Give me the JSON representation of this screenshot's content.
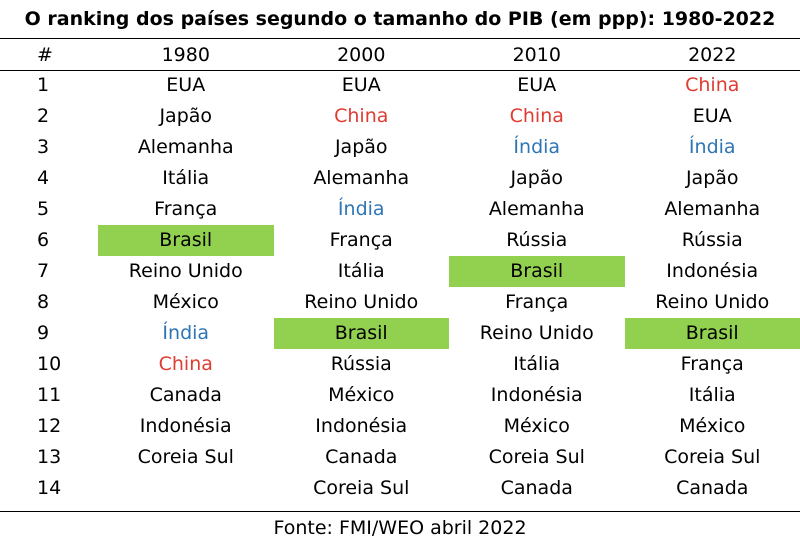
{
  "title": "O ranking dos países segundo o tamanho do PIB (em ppp): 1980-2022",
  "source": "Fonte: FMI/WEO abril 2022",
  "colors": {
    "highlight": "#92d050",
    "china": "#e03c31",
    "india": "#2e75b6"
  },
  "table": {
    "headers": [
      "#",
      "1980",
      "2000",
      "2010",
      "2022"
    ],
    "rows": [
      [
        "1",
        "EUA",
        "EUA",
        "EUA",
        "China"
      ],
      [
        "2",
        "Japão",
        "China",
        "China",
        "EUA"
      ],
      [
        "3",
        "Alemanha",
        "Japão",
        "Índia",
        "Índia"
      ],
      [
        "4",
        "Itália",
        "Alemanha",
        "Japão",
        "Japão"
      ],
      [
        "5",
        "França",
        "Índia",
        "Alemanha",
        "Alemanha"
      ],
      [
        "6",
        "Brasil",
        "França",
        "Rússia",
        "Rússia"
      ],
      [
        "7",
        "Reino Unido",
        "Itália",
        "Brasil",
        "Indonésia"
      ],
      [
        "8",
        "México",
        "Reino Unido",
        "França",
        "Reino Unido"
      ],
      [
        "9",
        "Índia",
        "Brasil",
        "Reino Unido",
        "Brasil"
      ],
      [
        "10",
        "China",
        "Rússia",
        "Itália",
        "França"
      ],
      [
        "11",
        "Canada",
        "México",
        "Indonésia",
        "Itália"
      ],
      [
        "12",
        "Indonésia",
        "Indonésia",
        "México",
        "México"
      ],
      [
        "13",
        "Coreia Sul",
        "Canada",
        "Coreia Sul",
        "Coreia Sul"
      ],
      [
        "14",
        "",
        "Coreia Sul",
        "Canada",
        "Canada"
      ]
    ]
  }
}
